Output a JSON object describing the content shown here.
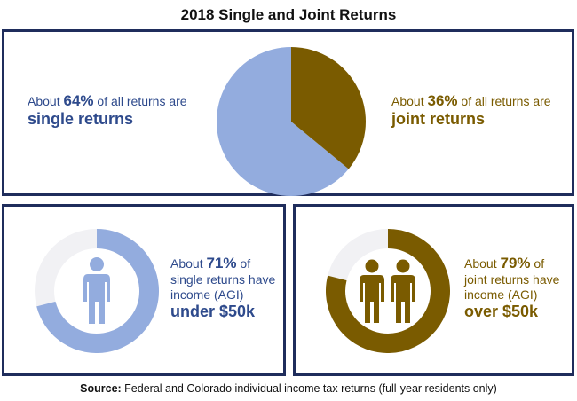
{
  "title": "2018 Single and Joint Returns",
  "colors": {
    "border": "#1f2d5c",
    "single": "#93acde",
    "joint": "#7a5b00",
    "track": "#f1f1f4",
    "single_text": "#2e4a8c",
    "joint_text": "#7a5b00"
  },
  "icons": {
    "single": "single-person-icon",
    "joint": "two-people-icon"
  },
  "chart_data": [
    {
      "type": "pie",
      "categories": [
        "single returns",
        "joint returns"
      ],
      "values": [
        64,
        36
      ],
      "unit": "%"
    },
    {
      "type": "pie",
      "categories": [
        "under $50k",
        "other"
      ],
      "values": [
        71,
        29
      ],
      "unit": "%"
    },
    {
      "type": "pie",
      "categories": [
        "over $50k",
        "other"
      ],
      "values": [
        79,
        21
      ],
      "unit": "%"
    }
  ],
  "top": {
    "single": {
      "prefix": "About ",
      "pct": "64%",
      "suffix": " of all returns are",
      "label": "single returns"
    },
    "joint": {
      "prefix": "About ",
      "pct": "36%",
      "suffix": " of all returns are",
      "label": "joint returns"
    }
  },
  "single_income": {
    "prefix": "About ",
    "pct": "71%",
    "suffix": " of",
    "line2": "single returns have",
    "line3": "income (AGI)",
    "label": "under $50k"
  },
  "joint_income": {
    "prefix": "About ",
    "pct": "79%",
    "suffix": " of",
    "line2": "joint returns have",
    "line3": "income (AGI)",
    "label": "over $50k"
  },
  "source": {
    "label": "Source:",
    "text": " Federal and Colorado individual income tax returns (full-year residents only)"
  }
}
